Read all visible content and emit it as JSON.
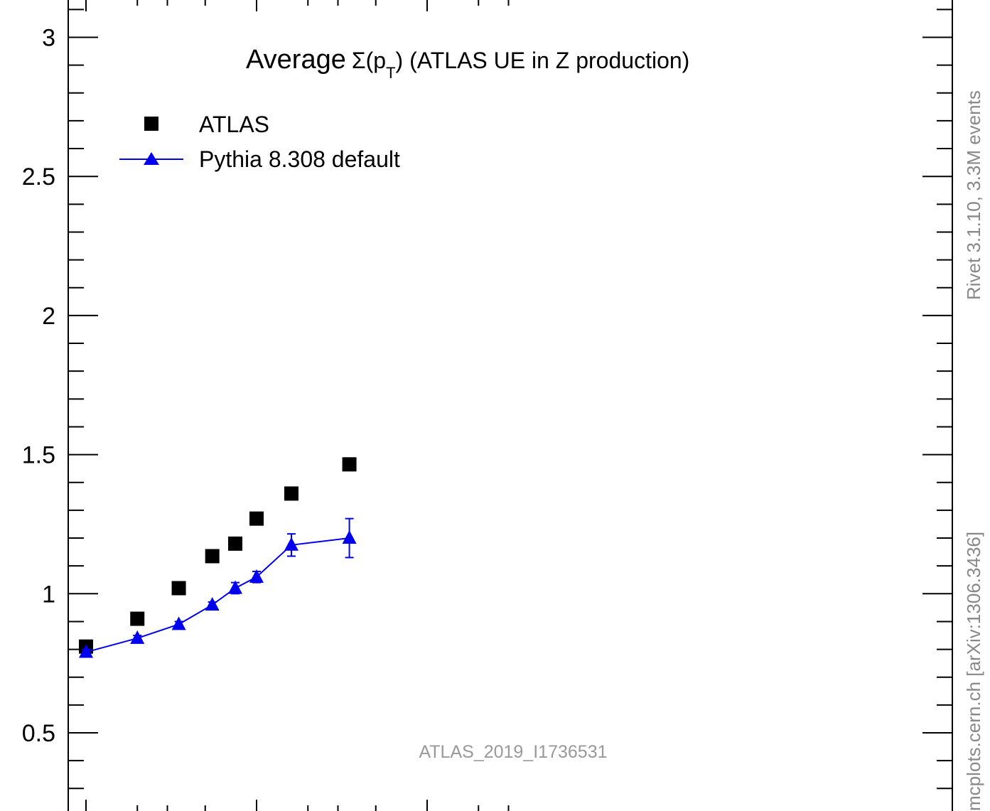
{
  "chart_data": {
    "type": "scatter",
    "title": "Average",
    "title_symbol": "Σ(p",
    "title_subscript": "T",
    "title_rest": ") (ATLAS UE in Z production)",
    "xlabel": "",
    "ylabel": "",
    "ylim": [
      0.25,
      3.15
    ],
    "yticks": [
      {
        "value": 3,
        "label": "3"
      },
      {
        "value": 2.5,
        "label": "2.5"
      },
      {
        "value": 2,
        "label": "2"
      },
      {
        "value": 1.5,
        "label": "1.5"
      },
      {
        "value": 1,
        "label": "1"
      },
      {
        "value": 0.5,
        "label": "0.5"
      }
    ],
    "yminor_step": 0.1,
    "legend_position": "top-left",
    "series": [
      {
        "name": "ATLAS",
        "marker": "square",
        "color": "#000000",
        "connected": false,
        "points": [
          {
            "x": 1,
            "y": 0.81
          },
          {
            "x": 2,
            "y": 0.91
          },
          {
            "x": 3.5,
            "y": 1.02
          },
          {
            "x": 5.5,
            "y": 1.135
          },
          {
            "x": 7.5,
            "y": 1.18
          },
          {
            "x": 10,
            "y": 1.27
          },
          {
            "x": 16,
            "y": 1.36
          },
          {
            "x": 35,
            "y": 1.465
          }
        ]
      },
      {
        "name": "Pythia 8.308 default",
        "marker": "triangle",
        "color": "#0000ee",
        "connected": true,
        "points": [
          {
            "x": 1,
            "y": 0.79,
            "err": 0.01
          },
          {
            "x": 2,
            "y": 0.84,
            "err": 0.01
          },
          {
            "x": 3.5,
            "y": 0.89,
            "err": 0.01
          },
          {
            "x": 5.5,
            "y": 0.96,
            "err": 0.01
          },
          {
            "x": 7.5,
            "y": 1.02,
            "err": 0.02
          },
          {
            "x": 10,
            "y": 1.06,
            "err": 0.02
          },
          {
            "x": 16,
            "y": 1.175,
            "err": 0.04
          },
          {
            "x": 35,
            "y": 1.2,
            "err": 0.07
          }
        ]
      }
    ]
  },
  "watermark": "ATLAS_2019_I1736531",
  "side_text_top": "Rivet 3.1.10,  3.3M events",
  "side_text_bottom": "mcplots.cern.ch [arXiv:1306.3436]"
}
